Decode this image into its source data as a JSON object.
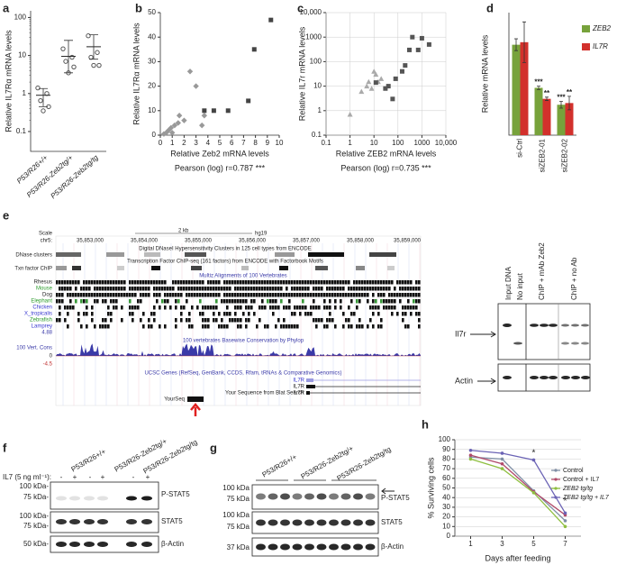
{
  "panels": [
    "a",
    "b",
    "c",
    "d",
    "e",
    "f",
    "g",
    "h"
  ],
  "chart_data": [
    {
      "type": "dotplot",
      "ylabel": "Relative IL7Rα mRNA levels",
      "categories": [
        "P53/R26+/+",
        "P53/R26-Zeb2tg/+",
        "P53/R26-Zeb2tg/tg"
      ],
      "points": [
        [
          1.4,
          1,
          0.65,
          0.45,
          0.35
        ],
        [
          15,
          9,
          7,
          5,
          3.5
        ],
        [
          33,
          12,
          9,
          5.5,
          5.5
        ]
      ],
      "means": [
        0.9,
        9.5,
        17
      ],
      "lower": [
        0.45,
        3.5,
        8
      ],
      "upper": [
        1.35,
        25,
        35
      ],
      "color": "#555",
      "log_y": true,
      "ylim": [
        0.03,
        150
      ],
      "yticks": [
        0.1,
        1,
        10,
        100
      ]
    },
    {
      "type": "scatter",
      "xlabel": "Relative Zeb2 mRNA levels",
      "ylabel": "Relative IL7Rα mRNA levels",
      "annotation": "Pearson (log) r=0.787 ***",
      "series": [
        {
          "marker": "diamond",
          "color": "#999",
          "x": [
            0.3,
            0.5,
            0.7,
            0.9,
            1,
            1.2,
            1.5,
            1.6,
            2,
            2.5,
            3,
            3.5,
            3.7
          ],
          "values": [
            0.5,
            1,
            2,
            3,
            1,
            4,
            5,
            8,
            6,
            26,
            20,
            4,
            8
          ]
        },
        {
          "marker": "square",
          "color": "#444",
          "x": [
            3.7,
            4.5,
            5.7,
            7.4,
            7.9,
            9.3
          ],
          "values": [
            10,
            10,
            10,
            14,
            35,
            47
          ]
        }
      ],
      "xlim": [
        0,
        10
      ],
      "xticks": [
        0,
        1,
        2,
        3,
        4,
        5,
        6,
        7,
        8,
        9,
        10
      ],
      "ylim": [
        0,
        50
      ],
      "yticks": [
        0,
        10,
        20,
        30,
        40,
        50
      ]
    },
    {
      "type": "scatter",
      "xlabel": "Relative ZEB2 mRNA levels",
      "ylabel": "Relative IL7r mRNA levels",
      "annotation": "Pearson (log) r=0.735 ***",
      "log_x": true,
      "log_y": true,
      "grid": true,
      "series": [
        {
          "marker": "triangle",
          "color": "#aaa",
          "x": [
            1,
            3,
            5,
            6,
            8,
            10,
            12,
            15,
            20
          ],
          "values": [
            0.7,
            6,
            10,
            15,
            8,
            40,
            30,
            15,
            20
          ]
        },
        {
          "marker": "square",
          "color": "#555",
          "x": [
            12,
            30,
            40,
            60,
            80,
            150,
            200,
            300,
            400,
            700,
            1000,
            2000
          ],
          "values": [
            14,
            8,
            10,
            3,
            20,
            40,
            70,
            300,
            1000,
            300,
            900,
            500
          ]
        }
      ],
      "xlim": [
        0.1,
        10000
      ],
      "xticks": [
        0.1,
        1,
        10,
        100,
        1000,
        {
          "value": 10000,
          "label": "10,000"
        }
      ],
      "ylim": [
        0.1,
        10000
      ],
      "yticks": [
        0.1,
        1,
        10,
        100,
        1000,
        {
          "value": 10000,
          "label": "10,000"
        }
      ]
    },
    {
      "type": "bar",
      "ylabel": "Relative mRNA levels",
      "categories": [
        "si-Ctrl",
        "siZEB2-01",
        "siZEB2-02"
      ],
      "series": [
        {
          "name": "ZEB2",
          "color": "#77a23b",
          "values": [
            1.07,
            0.56,
            0.36
          ],
          "errors": [
            0.07,
            0.02,
            0.04
          ],
          "stars": [
            null,
            "***",
            "***"
          ]
        },
        {
          "name": "IL7R",
          "color": "#d2302c",
          "values": [
            1.1,
            0.43,
            0.38
          ],
          "errors": [
            0.24,
            0.02,
            0.08
          ],
          "stars": [
            null,
            "**",
            "**"
          ]
        }
      ],
      "ylim": [
        0,
        1.45
      ]
    },
    {
      "type": "line",
      "xlabel": "Days after feeding",
      "ylabel": "% Surviving cells",
      "grid": true,
      "x": [
        1,
        3,
        5,
        7
      ],
      "xlim": [
        0,
        8
      ],
      "xticks": [
        1,
        3,
        5,
        7
      ],
      "ylim": [
        0,
        100
      ],
      "yticks": [
        0,
        10,
        20,
        30,
        40,
        50,
        60,
        70,
        80,
        90,
        100
      ],
      "series": [
        {
          "name": "Control",
          "color": "#7f8fa6",
          "values": [
            82,
            80,
            47,
            16
          ]
        },
        {
          "name": "Control + IL7",
          "color": "#b04a6a",
          "values": [
            84,
            75,
            46,
            22
          ]
        },
        {
          "name": "ZEB2 tg/tg",
          "color": "#8fbf40",
          "values": [
            80,
            70,
            45,
            10
          ]
        },
        {
          "name": "ZEB2 tg/tg + IL7",
          "color": "#6b63b5",
          "values": [
            89,
            86,
            79,
            24
          ]
        }
      ],
      "annotations": [
        {
          "x": 5,
          "y": 86,
          "text": "*"
        },
        {
          "x": 7,
          "y": 36,
          "text": "*"
        }
      ]
    }
  ],
  "browser": {
    "scale": "Scale",
    "chr": "chr5:",
    "kb": "2 kb",
    "build": "hg19",
    "coords": [
      "35,853,000",
      "35,854,000",
      "35,855,000",
      "35,856,000",
      "35,857,000",
      "35,858,000",
      "35,859,000"
    ],
    "dnase_title": "Digital DNaseI Hypersensitivity Clusters in 125 cell types from ENCODE",
    "dnase": "DNase clusters",
    "txn_title": "Transcription Factor ChIP-seq (161 factors) from ENCODE with Factorbook Motifs",
    "txn": "Txn factor ChIP",
    "multiz": "Multiz Alignments of 100 Vertebrates",
    "species": [
      "Rhesus",
      "Mouse",
      "Dog",
      "Elephant",
      "Chicken",
      "X_tropicalis",
      "Zebrafish",
      "Lamprey"
    ],
    "cons_max": "4.88",
    "cons_title": "100 vertebrates Basewise Conservation by Phylop",
    "cons": "100 Vert. Cons",
    "cons_zero": "0",
    "cons_min": "-4.5",
    "genes_title": "UCSC Genes (RefSeq, GenBank, CCDS, Rfam, tRNAs & Comparative Genomics)",
    "genes": [
      "IL7R",
      "IL7R",
      "IL7R"
    ],
    "yourseq": "YourSeq",
    "blat": "Your Sequence from Blat Search"
  },
  "chip_blot": {
    "lanes": [
      "Input DNA",
      "No input",
      "ChIP + mAb Zeb2",
      "ChIP + no Ab"
    ],
    "rows": [
      "Il7r",
      "Actin"
    ]
  },
  "blot_f": {
    "treatment": "IL7 (5 ng ml⁻¹):",
    "signs": [
      "-",
      "+",
      "-",
      "+",
      "-",
      "+"
    ],
    "groups": [
      "P53/R26+/+",
      "P53/R26-Zeb2tg/+",
      "P53/R26-Zeb2tg/tg"
    ],
    "markers": [
      "100 kDa-",
      "75 kDa-",
      "100 kDa-",
      "75 kDa-",
      "50 kDa-"
    ],
    "rows": [
      "P-STAT5",
      "STAT5",
      "β-Actin"
    ]
  },
  "blot_g": {
    "groups": [
      "P53/R26+/+",
      "P53/R26-Zeb2tg/+",
      "P53/R26-Zeb2tg/tg"
    ],
    "markers": [
      "100 kDa",
      "75 kDa",
      "100 kDa",
      "75 kDa",
      "37 kDa"
    ],
    "rows": [
      "P-STAT5",
      "STAT5",
      "β-Actin"
    ]
  }
}
